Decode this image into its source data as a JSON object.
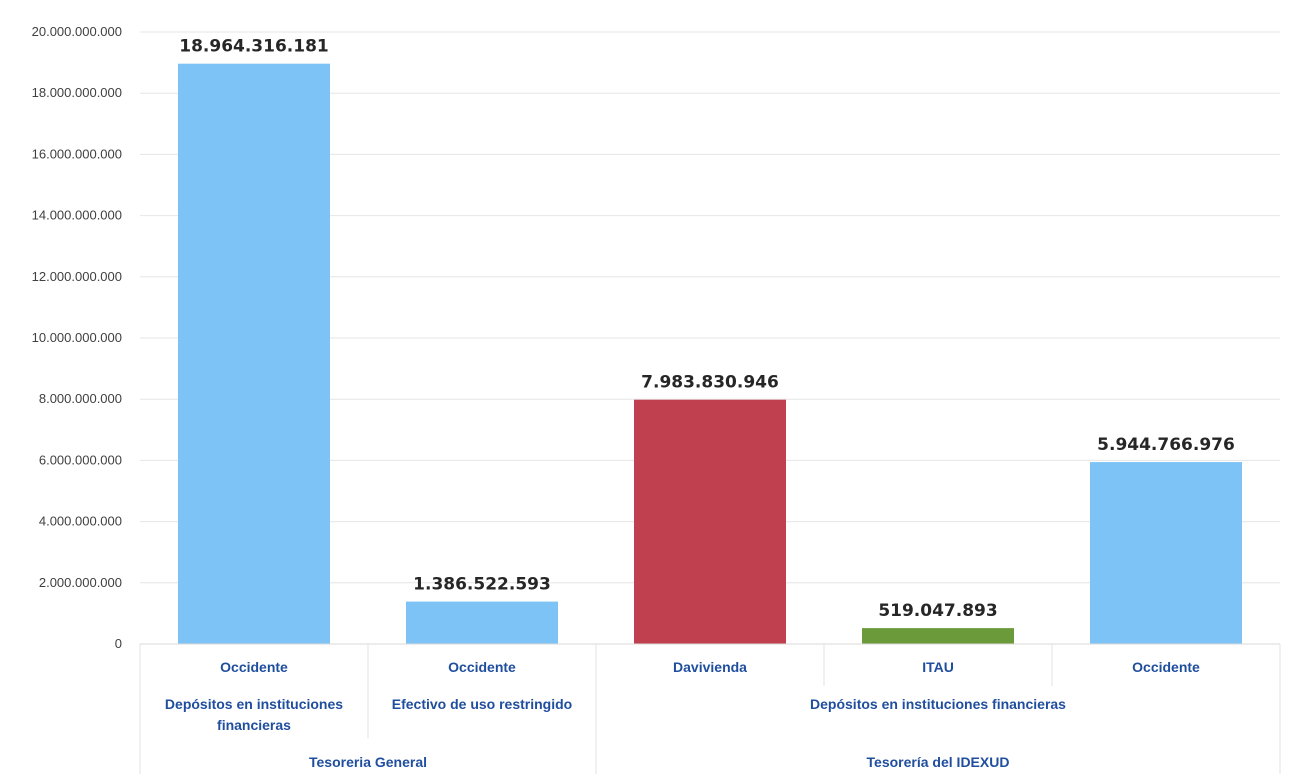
{
  "chart_data": {
    "type": "bar",
    "ylim": [
      0,
      20000000000
    ],
    "yticks": [
      "0",
      "2.000.000.000",
      "4.000.000.000",
      "6.000.000.000",
      "8.000.000.000",
      "10.000.000.000",
      "12.000.000.000",
      "14.000.000.000",
      "16.000.000.000",
      "18.000.000.000",
      "20.000.000.000"
    ],
    "grid": true,
    "bars": [
      {
        "category": "Occidente",
        "value": 18964316181,
        "label": "18.964.316.181",
        "color": "#7ec3f5"
      },
      {
        "category": "Occidente",
        "value": 1386522593,
        "label": "1.386.522.593",
        "color": "#7ec3f5"
      },
      {
        "category": "Davivienda",
        "value": 7983830946,
        "label": "7.983.830.946",
        "color": "#c0404f"
      },
      {
        "category": "ITAU",
        "value": 519047893,
        "label": "519.047.893",
        "color": "#6a9a3a"
      },
      {
        "category": "Occidente",
        "value": 5944766976,
        "label": "5.944.766.976",
        "color": "#7ec3f5"
      }
    ],
    "group_level2": [
      {
        "lines": [
          "Depósitos en instituciones",
          "financieras"
        ],
        "span": [
          0,
          0
        ]
      },
      {
        "lines": [
          "Efectivo de uso restringido"
        ],
        "span": [
          1,
          1
        ]
      },
      {
        "lines": [
          "Depósitos en instituciones financieras"
        ],
        "span": [
          2,
          4
        ]
      }
    ],
    "group_level3": [
      {
        "label": "Tesoreria General",
        "span": [
          0,
          1
        ]
      },
      {
        "label": "Tesorería del IDEXUD",
        "span": [
          2,
          4
        ]
      }
    ]
  }
}
